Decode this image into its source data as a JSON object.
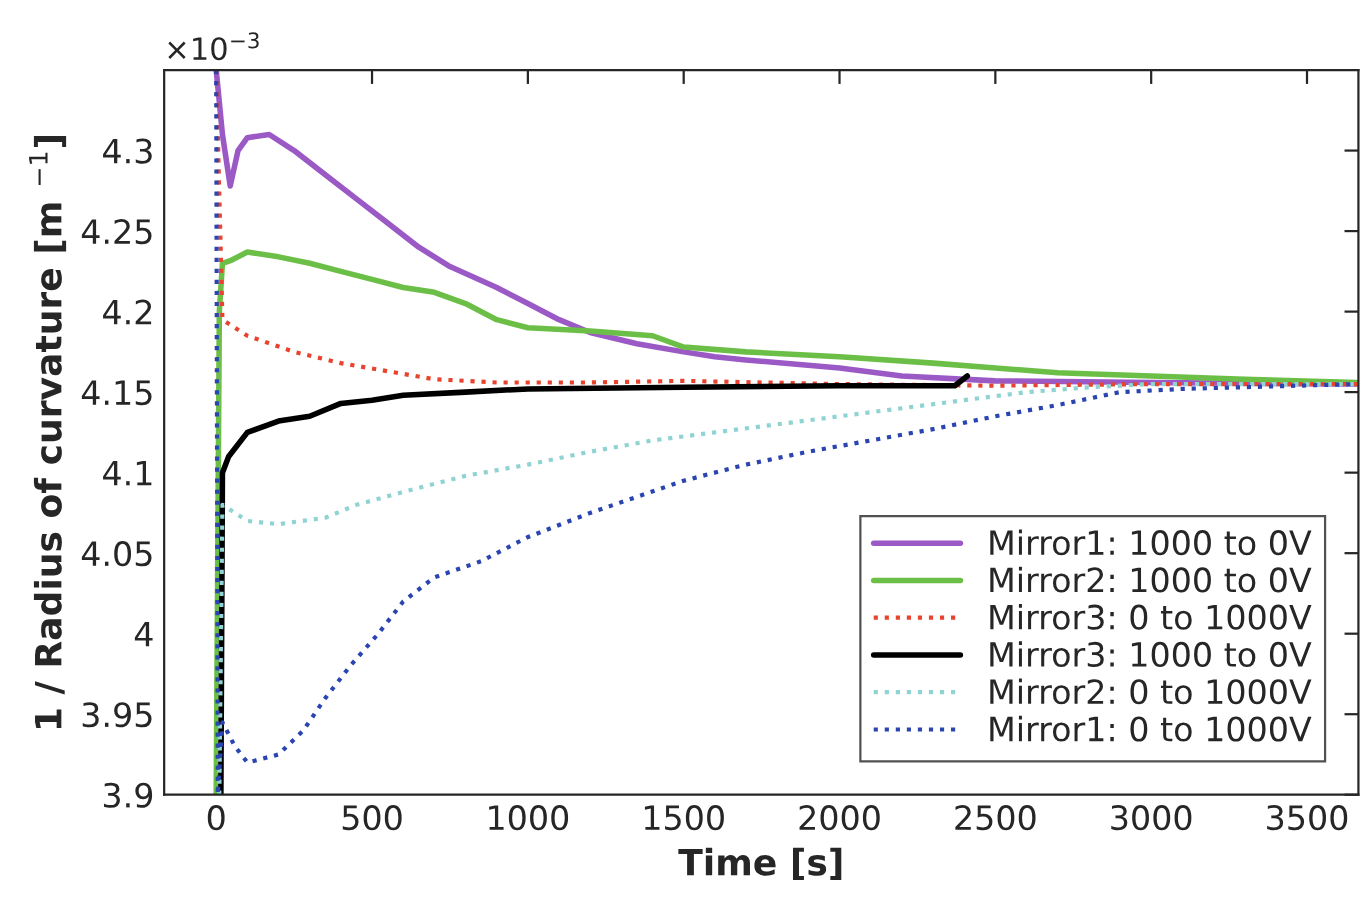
{
  "chart_data": {
    "type": "line",
    "xlabel": "Time [s]",
    "ylabel": "1 / Radius of curvature [m $^{−1}$]",
    "annotations": [
      "×10$^{−3}$"
    ],
    "xlim": [
      -167,
      3665
    ],
    "ylim": [
      3.9,
      4.35
    ],
    "xticks": [
      0,
      500,
      1000,
      1500,
      2000,
      2500,
      3000,
      3500
    ],
    "yticks": [
      3.9,
      3.95,
      4,
      4.05,
      4.1,
      4.15,
      4.2,
      4.25,
      4.3
    ],
    "grid": false,
    "legend": "bottom right",
    "series": [
      {
        "name": "Mirror1: 1000 to 0V",
        "color": "#9b59c6",
        "line_style": "solid",
        "x": [
          0,
          20,
          45,
          70,
          100,
          170,
          250,
          350,
          450,
          550,
          650,
          750,
          900,
          1000,
          1100,
          1200,
          1350,
          1500,
          1600,
          1700,
          2000,
          2200,
          2500,
          3000,
          3660
        ],
        "values": [
          4.35,
          4.31,
          4.278,
          4.3,
          4.308,
          4.31,
          4.3,
          4.285,
          4.27,
          4.255,
          4.24,
          4.228,
          4.215,
          4.205,
          4.195,
          4.187,
          4.18,
          4.175,
          4.172,
          4.17,
          4.165,
          4.16,
          4.157,
          4.156,
          4.155
        ]
      },
      {
        "name": "Mirror2: 1000 to 0V",
        "color": "#6cbf46",
        "line_style": "solid",
        "x": [
          0,
          10,
          20,
          50,
          100,
          200,
          300,
          400,
          500,
          600,
          700,
          800,
          900,
          1000,
          1200,
          1400,
          1500,
          1700,
          2000,
          2300,
          2500,
          2700,
          3000,
          3300,
          3660
        ],
        "values": [
          3.9,
          4.2,
          4.23,
          4.232,
          4.237,
          4.234,
          4.23,
          4.225,
          4.22,
          4.215,
          4.212,
          4.205,
          4.195,
          4.19,
          4.188,
          4.185,
          4.178,
          4.175,
          4.172,
          4.168,
          4.165,
          4.162,
          4.16,
          4.158,
          4.156
        ]
      },
      {
        "name": "Mirror3: 0 to 1000V",
        "color": "#e8432e",
        "line_style": "dotted",
        "x": [
          0,
          20,
          100,
          250,
          400,
          550,
          700,
          900,
          1200,
          1500,
          2000,
          2500,
          3000,
          3660
        ],
        "values": [
          4.35,
          4.195,
          4.185,
          4.175,
          4.168,
          4.163,
          4.158,
          4.156,
          4.156,
          4.157,
          4.155,
          4.154,
          4.155,
          4.155
        ]
      },
      {
        "name": "Mirror3: 1000 to 0V",
        "color": "#000000",
        "line_style": "solid",
        "x": [
          15,
          20,
          40,
          100,
          200,
          300,
          400,
          500,
          600,
          800,
          1000,
          1500,
          2000,
          2370,
          2410
        ],
        "values": [
          3.9,
          4.1,
          4.11,
          4.125,
          4.132,
          4.135,
          4.143,
          4.145,
          4.148,
          4.15,
          4.152,
          4.153,
          4.154,
          4.154,
          4.16
        ]
      },
      {
        "name": "Mirror2: 0 to 1000V",
        "color": "#8fd4d2",
        "line_style": "dotted",
        "x": [
          10,
          20,
          100,
          200,
          350,
          450,
          600,
          800,
          1000,
          1200,
          1400,
          1600,
          1800,
          2000,
          2200,
          2400,
          2600,
          2800,
          3000,
          3660
        ],
        "values": [
          3.9,
          4.08,
          4.07,
          4.068,
          4.072,
          4.08,
          4.088,
          4.098,
          4.105,
          4.113,
          4.12,
          4.125,
          4.13,
          4.135,
          4.14,
          4.145,
          4.15,
          4.153,
          4.155,
          4.155
        ]
      },
      {
        "name": "Mirror1: 0 to 1000V",
        "color": "#2a44b0",
        "line_style": "dotted",
        "x": [
          0,
          5,
          20,
          60,
          100,
          200,
          280,
          350,
          430,
          520,
          600,
          700,
          850,
          1000,
          1200,
          1350,
          1500,
          1700,
          1900,
          2100,
          2300,
          2500,
          2700,
          2900,
          3100,
          3660
        ],
        "values": [
          4.35,
          3.9,
          3.945,
          3.93,
          3.92,
          3.925,
          3.94,
          3.96,
          3.98,
          4.0,
          4.02,
          4.035,
          4.045,
          4.06,
          4.075,
          4.085,
          4.095,
          4.105,
          4.113,
          4.12,
          4.127,
          4.135,
          4.142,
          4.15,
          4.152,
          4.155
        ]
      }
    ]
  }
}
